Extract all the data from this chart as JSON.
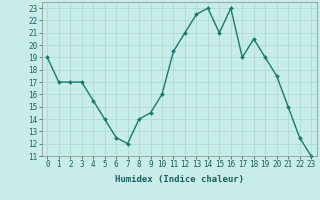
{
  "x": [
    0,
    1,
    2,
    3,
    4,
    5,
    6,
    7,
    8,
    9,
    10,
    11,
    12,
    13,
    14,
    15,
    16,
    17,
    18,
    19,
    20,
    21,
    22,
    23
  ],
  "y": [
    19,
    17,
    17,
    17,
    15.5,
    14,
    12.5,
    12,
    14,
    14.5,
    16,
    19.5,
    21,
    22.5,
    23,
    21,
    23,
    19,
    20.5,
    19,
    17.5,
    15,
    12.5,
    11
  ],
  "line_color": "#1a7a6e",
  "marker": "D",
  "marker_size": 2,
  "line_width": 1.0,
  "bg_color": "#c8ece8",
  "grid_color": "#a8d8d0",
  "xlabel": "Humidex (Indice chaleur)",
  "ylim": [
    11,
    23.5
  ],
  "xlim": [
    -0.5,
    23.5
  ],
  "yticks": [
    11,
    12,
    13,
    14,
    15,
    16,
    17,
    18,
    19,
    20,
    21,
    22,
    23
  ],
  "xticks": [
    0,
    1,
    2,
    3,
    4,
    5,
    6,
    7,
    8,
    9,
    10,
    11,
    12,
    13,
    14,
    15,
    16,
    17,
    18,
    19,
    20,
    21,
    22,
    23
  ],
  "tick_fontsize": 5.5,
  "xlabel_fontsize": 6.5
}
